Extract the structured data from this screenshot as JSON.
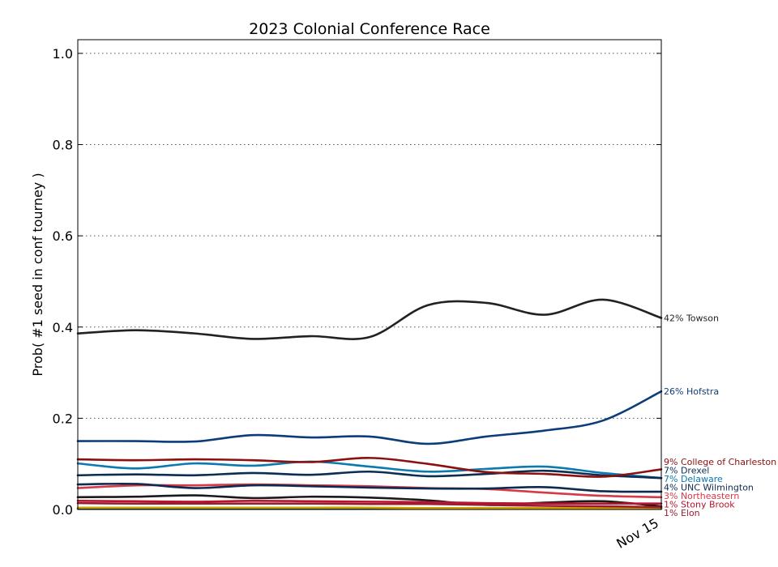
{
  "chart_data": {
    "type": "line",
    "title": "2023 Colonial Conference Race",
    "ylabel": "Prob( #1 seed in conf tourney )",
    "xlabel": "",
    "ylim": [
      0,
      1.03
    ],
    "yticks": [
      0.0,
      0.2,
      0.4,
      0.6,
      0.8,
      1.0
    ],
    "ytick_labels": [
      "0.0",
      "0.2",
      "0.4",
      "0.6",
      "0.8",
      "1.0"
    ],
    "xtick_labels": [
      "Nov 15"
    ],
    "grid": "horizontal dotted",
    "x": [
      0,
      1,
      2,
      3,
      4,
      5,
      6,
      7,
      8,
      9,
      10
    ],
    "series": [
      {
        "name": "Towson",
        "label": "42% Towson",
        "color": "#222222",
        "values": [
          0.386,
          0.393,
          0.386,
          0.374,
          0.38,
          0.378,
          0.448,
          0.453,
          0.427,
          0.46,
          0.42
        ]
      },
      {
        "name": "Hofstra",
        "label": "26% Hofstra",
        "color": "#0b3d7a",
        "values": [
          0.15,
          0.15,
          0.149,
          0.163,
          0.158,
          0.16,
          0.144,
          0.16,
          0.173,
          0.195,
          0.259
        ]
      },
      {
        "name": "College of Charleston",
        "label": "9% College of Charleston",
        "color": "#8b1010",
        "values": [
          0.11,
          0.108,
          0.11,
          0.108,
          0.104,
          0.113,
          0.1,
          0.082,
          0.078,
          0.072,
          0.088
        ]
      },
      {
        "name": "Drexel",
        "label": "7% Drexel",
        "color": "#0c2d52",
        "values": [
          0.075,
          0.077,
          0.075,
          0.08,
          0.076,
          0.083,
          0.073,
          0.078,
          0.085,
          0.075,
          0.069
        ]
      },
      {
        "name": "Delaware",
        "label": "7% Delaware",
        "color": "#0a7ab0",
        "values": [
          0.101,
          0.09,
          0.101,
          0.096,
          0.105,
          0.094,
          0.083,
          0.089,
          0.094,
          0.08,
          0.069
        ]
      },
      {
        "name": "UNC Wilmington",
        "label": "4% UNC Wilmington",
        "color": "#0d2a4f",
        "values": [
          0.055,
          0.056,
          0.047,
          0.053,
          0.051,
          0.048,
          0.046,
          0.046,
          0.049,
          0.04,
          0.039
        ]
      },
      {
        "name": "Northeastern",
        "label": "3% Northeastern",
        "color": "#d63a48",
        "values": [
          0.047,
          0.053,
          0.053,
          0.055,
          0.053,
          0.051,
          0.047,
          0.045,
          0.037,
          0.03,
          0.027
        ]
      },
      {
        "name": "Stony Brook",
        "label": "1% Stony Brook",
        "color": "#b8142e",
        "values": [
          0.019,
          0.018,
          0.017,
          0.019,
          0.018,
          0.017,
          0.016,
          0.014,
          0.013,
          0.013,
          0.013
        ]
      },
      {
        "name": "Elon",
        "label": "1% Elon",
        "color": "#9b1b30",
        "values": [
          0.014,
          0.013,
          0.013,
          0.013,
          0.013,
          0.012,
          0.012,
          0.01,
          0.008,
          0.007,
          0.005
        ]
      },
      {
        "name": "",
        "label": "",
        "color": "#1a1a1a",
        "values": [
          0.027,
          0.028,
          0.031,
          0.025,
          0.028,
          0.026,
          0.02,
          0.01,
          0.015,
          0.018,
          0.007
        ]
      },
      {
        "name": "",
        "label": "",
        "color": "#c8a200",
        "values": [
          0.004,
          0.004,
          0.004,
          0.004,
          0.004,
          0.004,
          0.003,
          0.003,
          0.003,
          0.003,
          0.003
        ]
      },
      {
        "name": "",
        "label": "",
        "color": "#2a3f1f",
        "values": [
          0.002,
          0.002,
          0.002,
          0.002,
          0.002,
          0.002,
          0.002,
          0.002,
          0.002,
          0.002,
          0.002
        ]
      }
    ]
  }
}
